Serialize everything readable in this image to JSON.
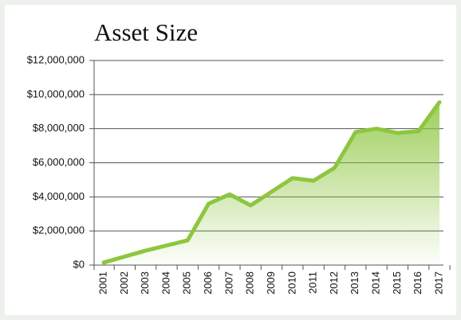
{
  "chart_data": {
    "type": "area",
    "title": "Asset Size",
    "categories": [
      "2001",
      "2002",
      "2003",
      "2004",
      "2005",
      "2006",
      "2007",
      "2008",
      "2009",
      "2010",
      "2011",
      "2012",
      "2013",
      "2014",
      "2015",
      "2016",
      "2017"
    ],
    "values": [
      150000,
      500000,
      850000,
      1150000,
      1450000,
      3600000,
      4150000,
      3500000,
      4300000,
      5100000,
      4950000,
      5700000,
      7800000,
      8000000,
      7750000,
      7850000,
      9550000
    ],
    "color": "#8dc63f",
    "ylim": [
      0,
      12000000
    ],
    "yticks": [
      {
        "value": 0,
        "label": "$0"
      },
      {
        "value": 2000000,
        "label": "$2,000,000"
      },
      {
        "value": 4000000,
        "label": "$4,000,000"
      },
      {
        "value": 6000000,
        "label": "$6,000,000"
      },
      {
        "value": 8000000,
        "label": "$8,000,000"
      },
      {
        "value": 10000000,
        "label": "$10,000,000"
      },
      {
        "value": 12000000,
        "label": "$12,000,000"
      }
    ],
    "grid": true
  }
}
